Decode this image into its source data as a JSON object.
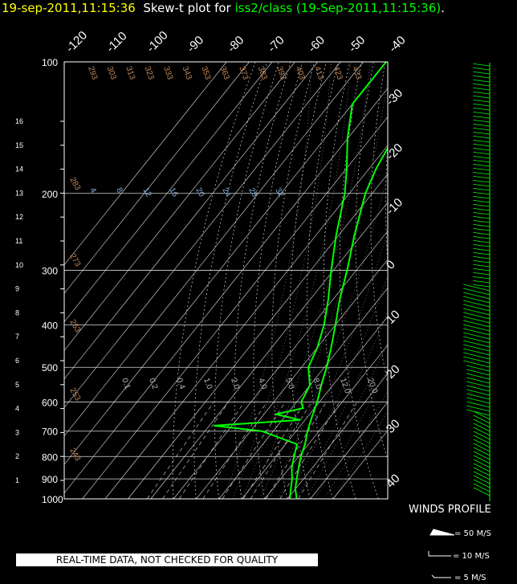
{
  "title": {
    "timestamp": "19-sep-2011,11:15:36",
    "mid": "Skew-t plot for",
    "station": "iss2/class (19-Sep-2011,11:15:36)",
    "end": "."
  },
  "chart_data": {
    "type": "line",
    "kind": "skew-t log-p",
    "pressure_levels": [
      "100",
      "200",
      "300",
      "400",
      "500",
      "600",
      "700",
      "800",
      "900",
      "1000"
    ],
    "height_km_labels": [
      "1",
      "2",
      "3",
      "4",
      "5",
      "6",
      "7",
      "8",
      "9",
      "10",
      "11",
      "12",
      "13",
      "14",
      "15",
      "16"
    ],
    "top_temp_labels": [
      "-120",
      "-110",
      "-100",
      "-90",
      "-80",
      "-70",
      "-60",
      "-50",
      "-40"
    ],
    "right_temp_labels": [
      "-30",
      "-20",
      "-10",
      "0",
      "10",
      "20",
      "30",
      "40"
    ],
    "dry_adiabat_labels": [
      "243",
      "253",
      "263",
      "273",
      "283",
      "293",
      "303",
      "313",
      "323",
      "333",
      "343",
      "353",
      "363",
      "373",
      "383",
      "393",
      "403",
      "413",
      "423",
      "433"
    ],
    "moist_adiabat_labels": [
      "4",
      "8",
      "12",
      "16",
      "20",
      "24",
      "28",
      "32"
    ],
    "mixing_ratio_labels": [
      "0.1",
      "0.2",
      "0.4",
      "1.0",
      "2.0",
      "4.0",
      "5.0",
      "8.0",
      "12.0",
      "20.0"
    ],
    "series": [
      {
        "color": "#00ff00",
        "temperature_profile": [
          [
            1000,
            24
          ],
          [
            950,
            20
          ],
          [
            900,
            17
          ],
          [
            850,
            14
          ],
          [
            800,
            11
          ],
          [
            750,
            8.5
          ],
          [
            700,
            5
          ],
          [
            650,
            2
          ],
          [
            600,
            -1
          ],
          [
            550,
            -5
          ],
          [
            500,
            -9
          ],
          [
            450,
            -14
          ],
          [
            400,
            -20
          ],
          [
            350,
            -27
          ],
          [
            300,
            -34
          ],
          [
            250,
            -43
          ],
          [
            200,
            -53
          ],
          [
            175,
            -57
          ],
          [
            150,
            -60
          ],
          [
            125,
            -63
          ],
          [
            100,
            -63
          ]
        ]
      },
      {
        "color": "#00ff00",
        "dewpoint_profile": [
          [
            1000,
            21
          ],
          [
            950,
            18
          ],
          [
            900,
            15
          ],
          [
            850,
            11
          ],
          [
            800,
            8
          ],
          [
            750,
            5
          ],
          [
            700,
            -15
          ],
          [
            680,
            -38
          ],
          [
            660,
            -2
          ],
          [
            640,
            -15
          ],
          [
            620,
            -5
          ],
          [
            600,
            -8
          ],
          [
            550,
            -10
          ],
          [
            500,
            -17
          ],
          [
            450,
            -20
          ],
          [
            400,
            -25
          ],
          [
            350,
            -32
          ],
          [
            300,
            -41
          ],
          [
            250,
            -51
          ],
          [
            200,
            -62
          ],
          [
            175,
            -70
          ],
          [
            150,
            -80
          ],
          [
            125,
            -90
          ],
          [
            100,
            -90
          ]
        ]
      }
    ],
    "wind_profile": {
      "label": "WINDS PROFILE",
      "legend": [
        "= 50 M/S",
        "= 10 M/S",
        "= 5 M/S"
      ]
    },
    "grid": true
  },
  "disclaimer": "REAL-TIME DATA, NOT CHECKED FOR QUALITY"
}
